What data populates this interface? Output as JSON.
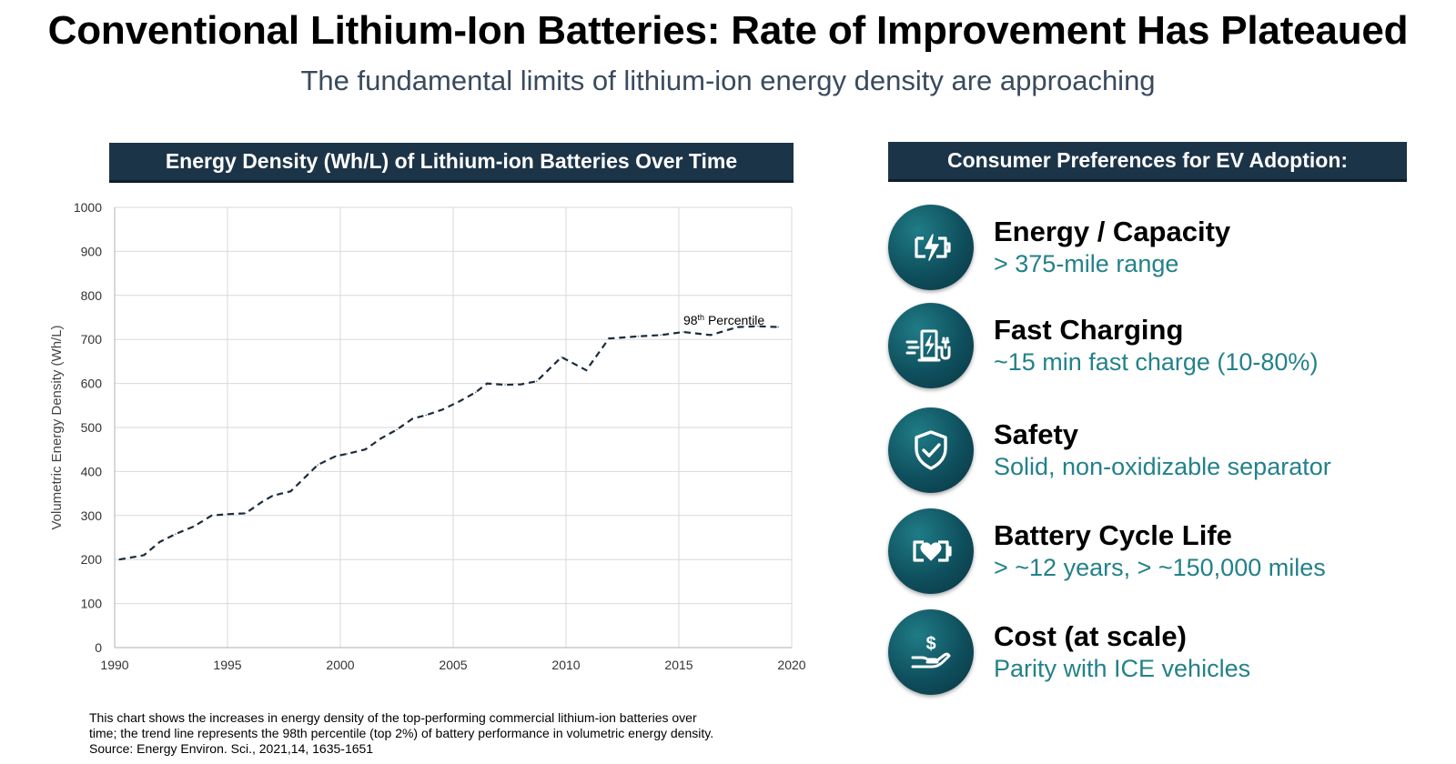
{
  "title": "Conventional Lithium-Ion Batteries: Rate of Improvement Has Plateaued",
  "subtitle": "The fundamental limits of lithium-ion energy density are approaching",
  "chart_header": "Energy Density (Wh/L) of Lithium-ion Batteries Over Time",
  "preferences_header": "Consumer Preferences for EV Adoption:",
  "chart_data": {
    "type": "line",
    "title": "Energy Density (Wh/L) of Lithium-ion Batteries Over Time",
    "xlabel": "",
    "ylabel": "Volumetric Energy Density (Wh/L)",
    "xlim": [
      1990,
      2020
    ],
    "ylim": [
      0,
      1000
    ],
    "xticks": [
      1990,
      1995,
      2000,
      2005,
      2010,
      2015,
      2020
    ],
    "yticks": [
      0,
      100,
      200,
      300,
      400,
      500,
      600,
      700,
      800,
      900,
      1000
    ],
    "grid": true,
    "line_style": "dashed",
    "line_color": "#1a2b3c",
    "annotation": {
      "text": "98",
      "sup": "th",
      "rest": " Percentile",
      "x": 2017,
      "y": 740
    },
    "series": [
      {
        "x": [
          1990.2,
          1991.3,
          1992.0,
          1992.7,
          1993.5,
          1994.3,
          1995.0,
          1995.8,
          1996.5,
          1997.0,
          1997.8,
          1998.5,
          1999.0,
          1999.8,
          2000.3,
          2001.1,
          2001.8,
          2002.5,
          2003.2,
          2003.8,
          2004.5,
          2005.3,
          2006.0,
          2006.5,
          2007.3,
          2008.0,
          2008.7,
          2009.8,
          2010.9,
          2011.9,
          2013.2,
          2014.2,
          2015.2,
          2016.4,
          2017.6,
          2018.5,
          2019.4
        ],
        "y": [
          200,
          210,
          240,
          258,
          275,
          300,
          303,
          305,
          330,
          345,
          355,
          390,
          415,
          435,
          440,
          450,
          475,
          495,
          520,
          528,
          540,
          560,
          580,
          600,
          597,
          598,
          605,
          660,
          630,
          702,
          707,
          710,
          717,
          710,
          728,
          730,
          728
        ]
      }
    ]
  },
  "footnote": {
    "line1": "This chart shows the increases in energy density of the top-performing commercial lithium-ion batteries over",
    "line2": "time; the trend line represents the 98th percentile (top 2%) of battery performance in volumetric energy density.",
    "line3": "Source: Energy Environ. Sci., 2021,14, 1635-1651"
  },
  "preferences": [
    {
      "icon": "battery-charging-icon",
      "title": "Energy / Capacity",
      "desc": "> 375-mile range"
    },
    {
      "icon": "charging-station-icon",
      "title": "Fast Charging",
      "desc": "~15 min fast charge (10-80%)"
    },
    {
      "icon": "shield-check-icon",
      "title": "Safety",
      "desc": "Solid, non-oxidizable separator"
    },
    {
      "icon": "battery-heart-icon",
      "title": "Battery Cycle Life",
      "desc": "> ~12 years, > ~150,000 miles"
    },
    {
      "icon": "hand-dollar-icon",
      "title": "Cost (at scale)",
      "desc": "Parity with ICE vehicles"
    }
  ],
  "colors": {
    "header_bg": "#1c3448",
    "accent_teal": "#23818a",
    "circle": "#0f4f5d"
  }
}
